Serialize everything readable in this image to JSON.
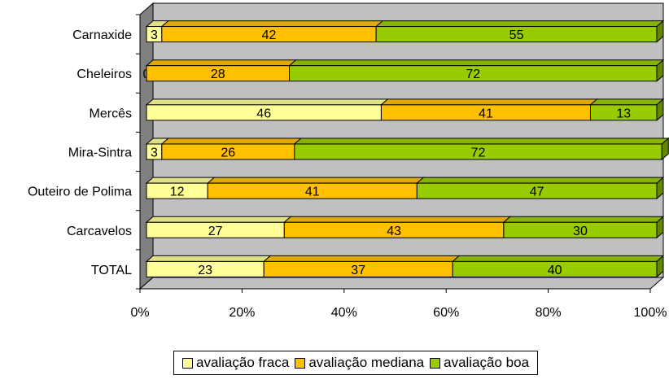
{
  "chart_data": {
    "type": "bar",
    "orientation": "horizontal",
    "stacked": "percent",
    "three_d": true,
    "categories": [
      "TOTAL",
      "Carcavelos",
      "Outeiro de Polima",
      "Mira-Sintra",
      "Mercês",
      "Cheleiros",
      "Carnaxide"
    ],
    "series": [
      {
        "name": "avaliação fraca",
        "color": "#FFFF99",
        "values": [
          23,
          27,
          12,
          3,
          46,
          0,
          3
        ]
      },
      {
        "name": "avaliação mediana",
        "color": "#FFC000",
        "values": [
          37,
          43,
          41,
          26,
          41,
          28,
          42
        ]
      },
      {
        "name": "avaliação boa",
        "color": "#99CC00",
        "values": [
          40,
          30,
          47,
          72,
          13,
          72,
          55
        ]
      }
    ],
    "x_ticks": [
      "0%",
      "20%",
      "40%",
      "60%",
      "80%",
      "100%"
    ],
    "xlim": [
      0,
      100
    ],
    "grid": false,
    "legend_position": "bottom",
    "wall_color": "#C0C0C0"
  }
}
